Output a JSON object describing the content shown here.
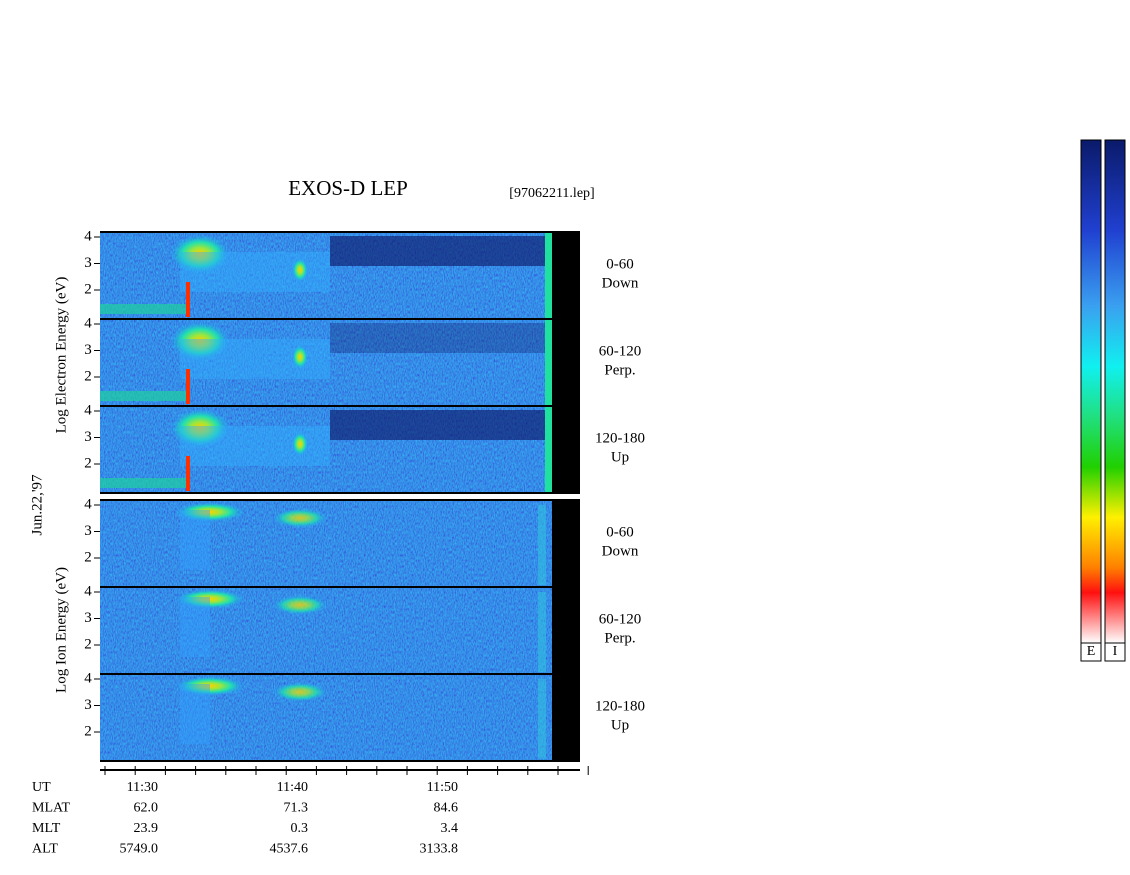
{
  "header": {
    "title": "EXOS-D LEP",
    "file": "[97062211.lep]"
  },
  "electron": {
    "axis_label": "Log Electron Energy (eV)",
    "panels": [
      {
        "yticks": [
          "4",
          "3",
          "2"
        ],
        "pitch": "0-60",
        "direction": "Down"
      },
      {
        "yticks": [
          "4",
          "3",
          "2"
        ],
        "pitch": "60-120",
        "direction": "Perp."
      },
      {
        "yticks": [
          "4",
          "3",
          "2"
        ],
        "pitch": "120-180",
        "direction": "Up"
      }
    ]
  },
  "ion": {
    "axis_label": "Log Ion Energy (eV)",
    "panels": [
      {
        "yticks": [
          "4",
          "3",
          "2"
        ],
        "pitch": "0-60",
        "direction": "Down"
      },
      {
        "yticks": [
          "4",
          "3",
          "2"
        ],
        "pitch": "60-120",
        "direction": "Perp."
      },
      {
        "yticks": [
          "4",
          "3",
          "2"
        ],
        "pitch": "120-180",
        "direction": "Up"
      }
    ]
  },
  "date": "Jun.22,'97",
  "time_axis": {
    "rows": [
      {
        "label": "UT",
        "values": [
          "11:30",
          "11:40",
          "11:50"
        ]
      },
      {
        "label": "MLAT",
        "values": [
          "62.0",
          "71.3",
          "84.6"
        ]
      },
      {
        "label": "MLT",
        "values": [
          "23.9",
          "0.3",
          "3.4"
        ]
      },
      {
        "label": "ALT",
        "values": [
          "5749.0",
          "4537.6",
          "3133.8"
        ]
      }
    ]
  },
  "colorbars": [
    "E",
    "I"
  ]
}
